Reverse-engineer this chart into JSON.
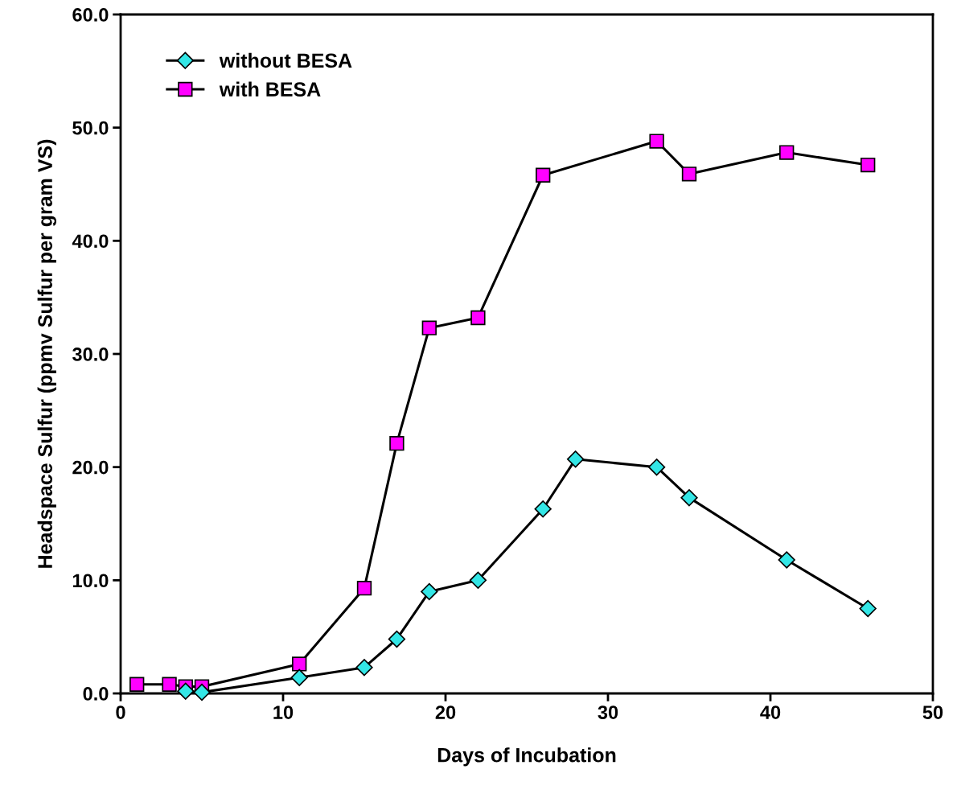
{
  "chart_data": {
    "type": "line",
    "xlabel": "Days of Incubation",
    "ylabel": "Headspace Sulfur (ppmv Sulfur per gram VS)",
    "xlim": [
      0,
      50
    ],
    "xticks": [
      0,
      10,
      20,
      30,
      40,
      50
    ],
    "ylim": [
      0,
      60
    ],
    "yticks": [
      {
        "value": 0,
        "label": "0.0"
      },
      {
        "value": 10,
        "label": "10.0"
      },
      {
        "value": 20,
        "label": "20.0"
      },
      {
        "value": 30,
        "label": "30.0"
      },
      {
        "value": 40,
        "label": "40.0"
      },
      {
        "value": 50,
        "label": "50.0"
      },
      {
        "value": 60,
        "label": "60.0"
      }
    ],
    "grid": false,
    "legend": "top left",
    "line_style": "solid",
    "series": [
      {
        "name": "without BESA",
        "color": "#33e6e6",
        "marker": "diamond",
        "x": [
          4,
          5,
          11,
          15,
          17,
          19,
          22,
          26,
          28,
          33,
          35,
          41,
          46
        ],
        "values": [
          0.2,
          0.1,
          1.4,
          2.3,
          4.8,
          9.0,
          10.0,
          16.3,
          20.7,
          20.0,
          17.3,
          11.8,
          7.5
        ]
      },
      {
        "name": "with BESA",
        "color": "#ff00ff",
        "marker": "square",
        "x": [
          1,
          3,
          4,
          5,
          11,
          15,
          17,
          19,
          22,
          26,
          33,
          35,
          41,
          46
        ],
        "values": [
          0.8,
          0.8,
          0.6,
          0.6,
          2.6,
          9.3,
          22.1,
          32.3,
          33.2,
          45.8,
          48.8,
          45.9,
          47.8,
          46.7
        ]
      }
    ]
  }
}
